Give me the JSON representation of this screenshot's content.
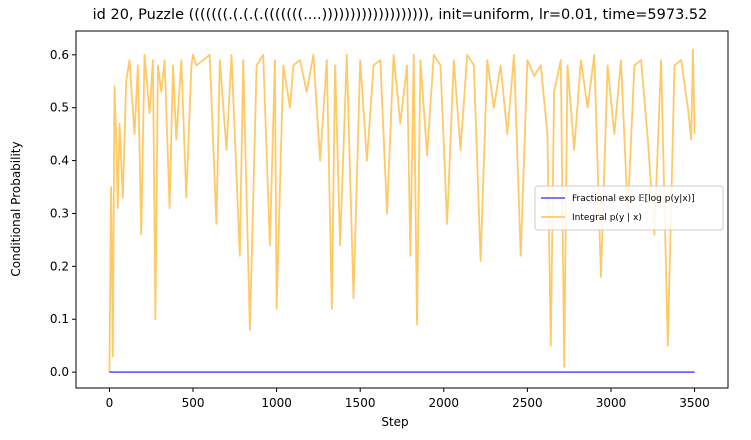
{
  "chart_data": {
    "type": "line",
    "title": "id 20, Puzzle (((((((.(.(.(.(((((((....))))))))))))))))))), init=uniform, lr=0.01, time=5973.52",
    "xlabel": "Step",
    "ylabel": "Conditional Probability",
    "xlim": [
      -200,
      3700
    ],
    "ylim": [
      -0.03,
      0.645
    ],
    "xticks": [
      0,
      500,
      1000,
      1500,
      2000,
      2500,
      3000,
      3500
    ],
    "yticks": [
      0.0,
      0.1,
      0.2,
      0.3,
      0.4,
      0.5,
      0.6
    ],
    "ytick_labels": [
      "0.0",
      "0.1",
      "0.2",
      "0.3",
      "0.4",
      "0.5",
      "0.6"
    ],
    "grid": false,
    "legend_position": "center-right",
    "series": [
      {
        "name": "Fractional exp 𝔼[log p(y|x)]",
        "color": "#0000ff",
        "x": [
          0,
          500,
          1000,
          1500,
          2000,
          2500,
          3000,
          3500
        ],
        "y": [
          0.0,
          0.0,
          0.0,
          0.0,
          0.0,
          0.0,
          0.0,
          0.0
        ]
      },
      {
        "name": "Integral p(y | x)",
        "color": "#ffa500",
        "x": [
          0,
          10,
          20,
          30,
          40,
          50,
          60,
          80,
          100,
          120,
          150,
          170,
          190,
          210,
          240,
          260,
          275,
          290,
          310,
          330,
          360,
          380,
          400,
          430,
          460,
          490,
          500,
          520,
          560,
          600,
          640,
          660,
          700,
          730,
          750,
          780,
          800,
          840,
          880,
          920,
          960,
          990,
          1000,
          1040,
          1080,
          1100,
          1140,
          1180,
          1220,
          1260,
          1300,
          1330,
          1350,
          1380,
          1420,
          1460,
          1500,
          1540,
          1580,
          1620,
          1660,
          1700,
          1740,
          1780,
          1800,
          1820,
          1840,
          1860,
          1900,
          1940,
          1980,
          2020,
          2060,
          2100,
          2140,
          2180,
          2220,
          2260,
          2300,
          2340,
          2380,
          2420,
          2460,
          2500,
          2540,
          2580,
          2620,
          2640,
          2660,
          2700,
          2720,
          2740,
          2780,
          2820,
          2860,
          2900,
          2940,
          2980,
          3020,
          3060,
          3100,
          3140,
          3180,
          3220,
          3260,
          3300,
          3340,
          3380,
          3420,
          3460,
          3480,
          3490,
          3500
        ],
        "y": [
          0.0,
          0.35,
          0.03,
          0.54,
          0.45,
          0.31,
          0.47,
          0.33,
          0.55,
          0.59,
          0.45,
          0.58,
          0.26,
          0.6,
          0.49,
          0.59,
          0.1,
          0.58,
          0.53,
          0.59,
          0.31,
          0.58,
          0.44,
          0.59,
          0.33,
          0.58,
          0.6,
          0.58,
          0.59,
          0.6,
          0.28,
          0.59,
          0.42,
          0.6,
          0.45,
          0.22,
          0.59,
          0.08,
          0.58,
          0.6,
          0.24,
          0.59,
          0.12,
          0.58,
          0.5,
          0.58,
          0.59,
          0.53,
          0.6,
          0.4,
          0.59,
          0.12,
          0.58,
          0.24,
          0.6,
          0.14,
          0.59,
          0.4,
          0.58,
          0.59,
          0.3,
          0.6,
          0.47,
          0.58,
          0.22,
          0.6,
          0.09,
          0.59,
          0.41,
          0.6,
          0.58,
          0.28,
          0.59,
          0.42,
          0.6,
          0.58,
          0.21,
          0.59,
          0.5,
          0.58,
          0.45,
          0.6,
          0.22,
          0.59,
          0.56,
          0.58,
          0.45,
          0.05,
          0.53,
          0.59,
          0.01,
          0.58,
          0.42,
          0.59,
          0.5,
          0.6,
          0.18,
          0.58,
          0.45,
          0.59,
          0.3,
          0.58,
          0.59,
          0.44,
          0.26,
          0.59,
          0.05,
          0.58,
          0.59,
          0.5,
          0.44,
          0.61,
          0.45
        ]
      }
    ]
  }
}
